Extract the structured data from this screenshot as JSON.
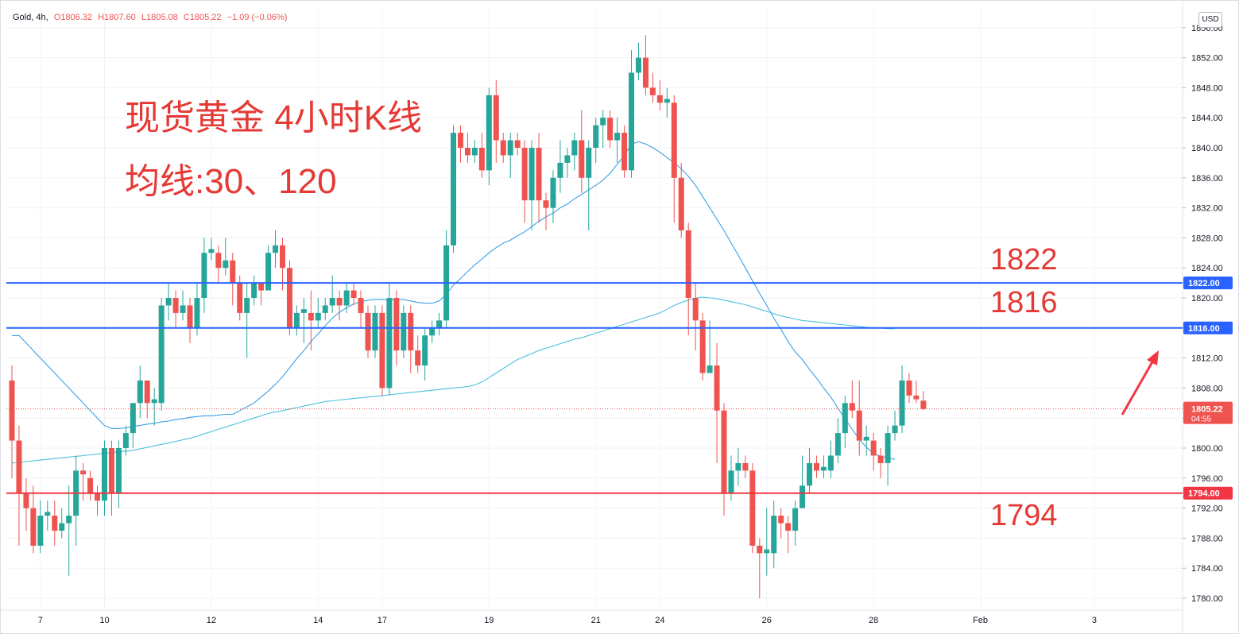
{
  "header": {
    "symbol": "Gold, 4h,",
    "open": "O1806.32",
    "high": "H1807.60",
    "low": "L1805.08",
    "close": "C1805.22",
    "change": "−1.09 (−0.06%)"
  },
  "currency": "USD",
  "annotations": {
    "title": "现货黄金 4小时K线",
    "subtitle": "均线:30、120",
    "level_1822": "1822",
    "level_1816": "1816",
    "level_1794": "1794"
  },
  "colors": {
    "up": "#26a69a",
    "down": "#ef5350",
    "ma30": "#3aa0e8",
    "ma120": "#4bc2dc",
    "hline_blue": "#2962ff",
    "hline_red": "#f23645",
    "annotation": "#e53935",
    "arrow": "#f23645"
  },
  "chart_data": {
    "type": "candlestick",
    "ylim": [
      1778,
      1857
    ],
    "y_ticks": [
      1780,
      1784,
      1788,
      1792,
      1796,
      1800,
      1804,
      1808,
      1812,
      1816,
      1820,
      1824,
      1828,
      1832,
      1836,
      1840,
      1844,
      1848,
      1852,
      1856
    ],
    "x_tick_labels": [
      {
        "label": "7",
        "index": 4
      },
      {
        "label": "10",
        "index": 13
      },
      {
        "label": "12",
        "index": 28
      },
      {
        "label": "14",
        "index": 43
      },
      {
        "label": "17",
        "index": 52
      },
      {
        "label": "19",
        "index": 67
      },
      {
        "label": "21",
        "index": 82
      },
      {
        "label": "24",
        "index": 91
      },
      {
        "label": "26",
        "index": 106
      },
      {
        "label": "28",
        "index": 121
      },
      {
        "label": "Feb",
        "index": 136
      },
      {
        "label": "3",
        "index": 152
      }
    ],
    "horizontal_lines": [
      {
        "value": 1822.0,
        "label": "1822.00",
        "color": "#2962ff"
      },
      {
        "value": 1816.0,
        "label": "1816.00",
        "color": "#2962ff"
      },
      {
        "value": 1794.0,
        "label": "1794.00",
        "color": "#f23645"
      }
    ],
    "last_price": {
      "value": 1805.22,
      "label": "1805.22",
      "countdown": "04:55"
    },
    "candles": [
      [
        1809,
        1801,
        1811,
        1796
      ],
      [
        1801,
        1794,
        1803,
        1787
      ],
      [
        1794,
        1792,
        1796,
        1789
      ],
      [
        1792,
        1787,
        1795,
        1786
      ],
      [
        1787,
        1791,
        1793,
        1786
      ],
      [
        1791,
        1791.5,
        1793,
        1789
      ],
      [
        1791,
        1789,
        1793,
        1787
      ],
      [
        1789,
        1790,
        1792,
        1788
      ],
      [
        1790,
        1791,
        1795,
        1783
      ],
      [
        1791,
        1797,
        1799,
        1787
      ],
      [
        1797,
        1796.5,
        1798,
        1793
      ],
      [
        1796,
        1794,
        1797,
        1793
      ],
      [
        1794,
        1793,
        1795,
        1791
      ],
      [
        1793,
        1800,
        1801,
        1791
      ],
      [
        1800,
        1794,
        1801,
        1791
      ],
      [
        1794,
        1800,
        1801,
        1792
      ],
      [
        1800,
        1802,
        1803,
        1799
      ],
      [
        1802,
        1806,
        1806,
        1800
      ],
      [
        1806,
        1809,
        1811,
        1804
      ],
      [
        1809,
        1806,
        1809,
        1804
      ],
      [
        1806,
        1806.5,
        1808,
        1803
      ],
      [
        1806,
        1819,
        1820,
        1805
      ],
      [
        1819,
        1820,
        1822,
        1817
      ],
      [
        1820,
        1818,
        1821,
        1816
      ],
      [
        1818,
        1819,
        1821,
        1817
      ],
      [
        1819,
        1816,
        1820,
        1814
      ],
      [
        1816,
        1820,
        1822,
        1815
      ],
      [
        1820,
        1826,
        1828,
        1818
      ],
      [
        1826,
        1826.5,
        1828,
        1825
      ],
      [
        1826,
        1824,
        1827,
        1822
      ],
      [
        1824,
        1825,
        1828,
        1823
      ],
      [
        1825,
        1822,
        1826,
        1819
      ],
      [
        1822,
        1818,
        1823,
        1817
      ],
      [
        1818,
        1820,
        1822,
        1812
      ],
      [
        1820,
        1822,
        1823,
        1819
      ],
      [
        1822,
        1821,
        1822,
        1819
      ],
      [
        1821,
        1826,
        1827,
        1823
      ],
      [
        1826,
        1827,
        1829,
        1824
      ],
      [
        1827,
        1824,
        1828,
        1821
      ],
      [
        1824,
        1816,
        1825,
        1815
      ],
      [
        1816,
        1818,
        1819,
        1815
      ],
      [
        1818,
        1818.5,
        1820,
        1814
      ],
      [
        1818,
        1817,
        1821,
        1813
      ],
      [
        1817,
        1818,
        1820,
        1816
      ],
      [
        1818,
        1819,
        1820,
        1817
      ],
      [
        1819,
        1820,
        1823,
        1818
      ],
      [
        1820,
        1819,
        1821,
        1817
      ],
      [
        1819,
        1821,
        1822,
        1818
      ],
      [
        1821,
        1820,
        1822,
        1819
      ],
      [
        1820,
        1818,
        1821,
        1816
      ],
      [
        1818,
        1813,
        1819,
        1812
      ],
      [
        1813,
        1818,
        1819,
        1812
      ],
      [
        1818,
        1808,
        1819,
        1807
      ],
      [
        1808,
        1820,
        1822,
        1807
      ],
      [
        1820,
        1813,
        1821,
        1811
      ],
      [
        1813,
        1818,
        1819,
        1812
      ],
      [
        1818,
        1813,
        1819,
        1810
      ],
      [
        1813,
        1811,
        1815,
        1810
      ],
      [
        1811,
        1815,
        1816,
        1809
      ],
      [
        1815,
        1816,
        1817,
        1814
      ],
      [
        1816,
        1817,
        1818,
        1815
      ],
      [
        1817,
        1827,
        1829,
        1816
      ],
      [
        1827,
        1842,
        1843,
        1826
      ],
      [
        1842,
        1840,
        1843,
        1838
      ],
      [
        1840,
        1839,
        1842,
        1838
      ],
      [
        1839,
        1840,
        1841,
        1838
      ],
      [
        1840,
        1837,
        1842,
        1836
      ],
      [
        1837,
        1847,
        1848,
        1835
      ],
      [
        1847,
        1841,
        1849,
        1838
      ],
      [
        1841,
        1839,
        1842,
        1838
      ],
      [
        1839,
        1841,
        1842,
        1836
      ],
      [
        1841,
        1840,
        1842,
        1839
      ],
      [
        1840,
        1833,
        1841,
        1830
      ],
      [
        1833,
        1840,
        1841,
        1829
      ],
      [
        1840,
        1833,
        1842,
        1830
      ],
      [
        1833,
        1832,
        1834,
        1829
      ],
      [
        1832,
        1836,
        1837,
        1830
      ],
      [
        1836,
        1838,
        1841,
        1834
      ],
      [
        1838,
        1839,
        1840,
        1836
      ],
      [
        1839,
        1841,
        1842,
        1837
      ],
      [
        1841,
        1836,
        1845,
        1834
      ],
      [
        1836,
        1840,
        1841,
        1829
      ],
      [
        1840,
        1843,
        1844,
        1838
      ],
      [
        1843,
        1844,
        1845,
        1840
      ],
      [
        1844,
        1841,
        1845,
        1840
      ],
      [
        1841,
        1842,
        1844,
        1838
      ],
      [
        1842,
        1837,
        1843,
        1836
      ],
      [
        1837,
        1850,
        1853,
        1836
      ],
      [
        1850,
        1852,
        1854,
        1849
      ],
      [
        1852,
        1848,
        1855,
        1847
      ],
      [
        1848,
        1847,
        1850,
        1846
      ],
      [
        1847,
        1846,
        1849,
        1845
      ],
      [
        1846,
        1846.5,
        1848,
        1844
      ],
      [
        1846,
        1836,
        1847,
        1830
      ],
      [
        1836,
        1829,
        1838,
        1828
      ],
      [
        1829,
        1820,
        1830,
        1815
      ],
      [
        1820,
        1817,
        1822,
        1813
      ],
      [
        1817,
        1810,
        1818,
        1809
      ],
      [
        1810,
        1811,
        1817,
        1810
      ],
      [
        1811,
        1805,
        1814,
        1798
      ],
      [
        1805,
        1794,
        1806,
        1791
      ],
      [
        1794,
        1797,
        1799,
        1793
      ],
      [
        1797,
        1798,
        1800,
        1795
      ],
      [
        1798,
        1797,
        1799,
        1796
      ],
      [
        1797,
        1787,
        1798,
        1786
      ],
      [
        1787,
        1786,
        1788,
        1780
      ],
      [
        1786,
        1786.5,
        1792,
        1783
      ],
      [
        1786,
        1791,
        1793,
        1784
      ],
      [
        1791,
        1790,
        1792,
        1788
      ],
      [
        1790,
        1789,
        1791,
        1786
      ],
      [
        1789,
        1792,
        1793,
        1787
      ],
      [
        1792,
        1795,
        1799,
        1792
      ],
      [
        1795,
        1798,
        1800,
        1794
      ],
      [
        1798,
        1797,
        1799,
        1796
      ],
      [
        1797,
        1797.5,
        1799,
        1796
      ],
      [
        1797,
        1799,
        1801,
        1796
      ],
      [
        1799,
        1802,
        1804,
        1798
      ],
      [
        1802,
        1806,
        1807,
        1800
      ],
      [
        1806,
        1805,
        1809,
        1804
      ],
      [
        1805,
        1801,
        1809,
        1799
      ],
      [
        1801,
        1801.5,
        1803,
        1799
      ],
      [
        1801,
        1799,
        1802,
        1797
      ],
      [
        1799,
        1798,
        1800,
        1796
      ],
      [
        1798,
        1802,
        1803,
        1795
      ],
      [
        1802,
        1803,
        1805,
        1801
      ],
      [
        1803,
        1809,
        1811,
        1802
      ],
      [
        1809,
        1807,
        1810,
        1806
      ],
      [
        1807,
        1806.5,
        1809,
        1806
      ],
      [
        1806.32,
        1805.22,
        1807.6,
        1805.08
      ]
    ],
    "series": [
      {
        "type": "line",
        "period": 30,
        "values": [
          1815,
          1815,
          1814,
          1813,
          1812,
          1811,
          1810,
          1809,
          1808,
          1807,
          1806,
          1805,
          1804,
          1803,
          1802.6,
          1802.6,
          1802.7,
          1802.9,
          1803,
          1803.2,
          1803.3,
          1803.5,
          1803.6,
          1803.8,
          1803.9,
          1804.1,
          1804.2,
          1804.3,
          1804.3,
          1804.4,
          1804.5,
          1804.5,
          1805,
          1805.5,
          1806,
          1806.8,
          1807.6,
          1808.5,
          1809.5,
          1810.7,
          1811.9,
          1813,
          1814.2,
          1815.2,
          1816.3,
          1817.3,
          1818.1,
          1818.7,
          1819.2,
          1819.5,
          1819.7,
          1819.8,
          1819.8,
          1819.7,
          1819.8,
          1819.8,
          1819.6,
          1819.4,
          1819.3,
          1819.3,
          1819.6,
          1820.5,
          1821.7,
          1822.6,
          1823.5,
          1824.4,
          1825.2,
          1826,
          1826.7,
          1827.3,
          1827.7,
          1828.3,
          1828.8,
          1829.5,
          1830.2,
          1830.8,
          1831.3,
          1832,
          1832.5,
          1833.2,
          1833.8,
          1834.4,
          1835,
          1835.7,
          1836.6,
          1837.8,
          1839,
          1840.5,
          1840.8,
          1840.5,
          1840,
          1839.4,
          1838.7,
          1838,
          1837.2,
          1836.2,
          1835,
          1833.5,
          1832,
          1830.5,
          1829,
          1827.3,
          1825.7,
          1824,
          1822.3,
          1820.6,
          1819,
          1817.3,
          1815.8,
          1814.2,
          1812.8,
          1811.8,
          1810.5,
          1809.3,
          1808,
          1806.8,
          1805.3,
          1803.9,
          1802.5,
          1801.2,
          1800.1,
          1799.3,
          1798.9,
          1798.7,
          1798.5
        ]
      },
      {
        "type": "line",
        "period": 120,
        "values": [
          1798.0,
          1798.1,
          1798.2,
          1798.3,
          1798.4,
          1798.5,
          1798.6,
          1798.7,
          1798.8,
          1798.9,
          1799.0,
          1799.1,
          1799.2,
          1799.3,
          1799.4,
          1799.5,
          1799.6,
          1799.7,
          1799.9,
          1800.1,
          1800.3,
          1800.5,
          1800.7,
          1800.9,
          1801.1,
          1801.3,
          1801.6,
          1801.9,
          1802.2,
          1802.5,
          1802.8,
          1803.1,
          1803.4,
          1803.7,
          1804.0,
          1804.3,
          1804.6,
          1804.8,
          1805.0,
          1805.2,
          1805.4,
          1805.6,
          1805.8,
          1806.0,
          1806.2,
          1806.3,
          1806.4,
          1806.5,
          1806.6,
          1806.7,
          1806.8,
          1806.9,
          1807.0,
          1807.1,
          1807.2,
          1807.3,
          1807.4,
          1807.5,
          1807.6,
          1807.7,
          1807.8,
          1807.9,
          1808.0,
          1808.1,
          1808.2,
          1808.4,
          1808.8,
          1809.4,
          1810.0,
          1810.6,
          1811.2,
          1811.8,
          1812.2,
          1812.6,
          1813.0,
          1813.3,
          1813.6,
          1813.9,
          1814.2,
          1814.5,
          1814.7,
          1815.0,
          1815.3,
          1815.6,
          1815.9,
          1816.2,
          1816.5,
          1816.8,
          1817.1,
          1817.4,
          1817.7,
          1818.0,
          1818.5,
          1819.0,
          1819.4,
          1819.7,
          1820.0,
          1820.1,
          1820.0,
          1819.9,
          1819.7,
          1819.5,
          1819.3,
          1819.1,
          1818.8,
          1818.5,
          1818.2,
          1817.9,
          1817.6,
          1817.4,
          1817.2,
          1817.0,
          1816.9,
          1816.8,
          1816.7,
          1816.6,
          1816.5,
          1816.4,
          1816.3,
          1816.2,
          1816.1,
          1816.0,
          1816.0,
          1815.9,
          1815.9
        ]
      }
    ]
  }
}
